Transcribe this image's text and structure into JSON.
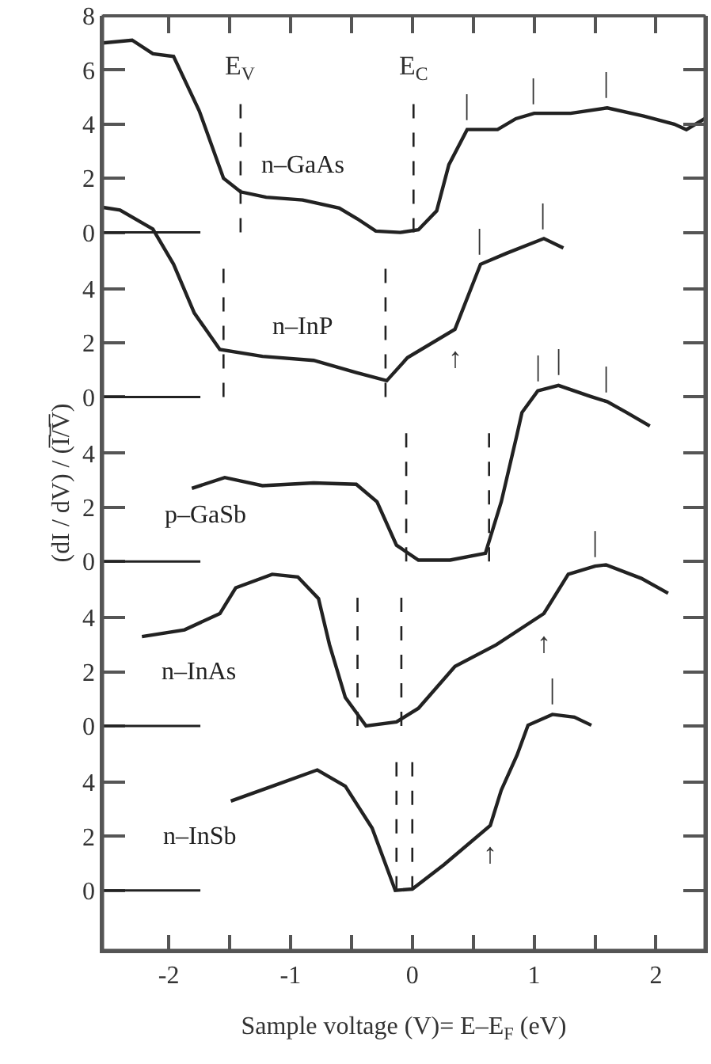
{
  "chart_data": [
    {
      "type": "line",
      "xlim": [
        -2.54,
        2.4
      ],
      "xticks": [
        {
          "value": -2,
          "label": null
        },
        {
          "value": -1.5,
          "label": null
        },
        {
          "value": -1,
          "label": null
        },
        {
          "value": -0.5,
          "label": null
        },
        {
          "value": 0,
          "label": null
        },
        {
          "value": 0.5,
          "label": null
        },
        {
          "value": 1,
          "label": null
        },
        {
          "value": 1.5,
          "label": null
        },
        {
          "value": 2,
          "label": null
        }
      ],
      "ylim": [
        -1.2,
        8
      ],
      "yticks": [
        0,
        2,
        4,
        6,
        8
      ],
      "tick_labels": "y",
      "marker": "none",
      "line_style": "solid",
      "series": [
        {
          "name": "n–GaAs",
          "color": "#222222",
          "x": [
            -2.54,
            -2.3,
            -2.13,
            -1.96,
            -1.75,
            -1.55,
            -1.41,
            -1.2,
            -0.9,
            -0.6,
            -0.45,
            -0.3,
            -0.1,
            0.05,
            0.2,
            0.3,
            0.45,
            0.7,
            0.85,
            1.0,
            1.3,
            1.6,
            1.9,
            2.15,
            2.25,
            2.4
          ],
          "values": [
            7.0,
            7.1,
            6.6,
            6.5,
            4.5,
            2.0,
            1.5,
            1.3,
            1.2,
            0.9,
            0.5,
            0.05,
            0.0,
            0.1,
            0.8,
            2.5,
            3.8,
            3.8,
            4.2,
            4.4,
            4.4,
            4.6,
            4.3,
            4.0,
            3.8,
            4.2
          ]
        }
      ],
      "ref_lines": [
        {
          "axis": "x",
          "value": -1.41,
          "label": "E$_{V}$",
          "line_style": "dashed"
        },
        {
          "axis": "x",
          "value": 0.01,
          "label": "E$_{C}$",
          "line_style": "dashed"
        },
        {
          "axis": "y",
          "value": 0
        }
      ],
      "annotations": [
        {
          "text": "|",
          "x": 0.45,
          "y": 3.8
        },
        {
          "text": "|",
          "x": 1.0,
          "y": 4.4
        },
        {
          "text": "|",
          "x": 1.6,
          "y": 4.6
        }
      ]
    },
    {
      "type": "line",
      "xlim": [
        -2.54,
        2.4
      ],
      "ylim": [
        -1.2,
        7.3
      ],
      "yticks": [
        0,
        2,
        4
      ],
      "tick_labels": "y",
      "marker": "none",
      "line_style": "solid",
      "series": [
        {
          "name": "n–InP",
          "color": "#222222",
          "x": [
            -2.54,
            -2.4,
            -2.13,
            -1.96,
            -1.79,
            -1.58,
            -1.23,
            -0.81,
            -0.46,
            -0.21,
            -0.04,
            0.35,
            0.56,
            0.77,
            1.08,
            1.24
          ],
          "values": [
            7.0,
            6.9,
            6.2,
            4.9,
            3.1,
            1.75,
            1.5,
            1.35,
            0.9,
            0.6,
            1.45,
            2.5,
            4.9,
            5.3,
            5.85,
            5.5
          ]
        }
      ],
      "ref_lines": [
        {
          "axis": "x",
          "value": -1.55,
          "line_style": "dashed"
        },
        {
          "axis": "x",
          "value": -0.22,
          "line_style": "dashed"
        },
        {
          "axis": "y",
          "value": 0
        }
      ],
      "annotations": [
        {
          "text": "|",
          "x": 0.56,
          "y": 4.9
        },
        {
          "text": "|",
          "x": 1.08,
          "y": 5.85
        },
        {
          "text": "↑",
          "x": 0.35,
          "y": 2.5
        }
      ]
    },
    {
      "type": "line",
      "xlim": [
        -2.54,
        2.4
      ],
      "ylim": [
        -1.2,
        7.0
      ],
      "yticks": [
        0,
        2,
        4
      ],
      "tick_labels": "y",
      "marker": "none",
      "line_style": "solid",
      "ylabel": "(dI / dV) / (I̅/̅V̅)",
      "series": [
        {
          "name": "p–GaSb",
          "color": "#222222",
          "x": [
            -1.81,
            -1.54,
            -1.23,
            -0.81,
            -0.46,
            -0.29,
            -0.13,
            0.05,
            0.31,
            0.6,
            0.73,
            0.86,
            0.9,
            1.03,
            1.2,
            1.46,
            1.6,
            1.76,
            1.95
          ],
          "values": [
            2.7,
            3.1,
            2.8,
            2.9,
            2.85,
            2.2,
            0.6,
            0.05,
            0.05,
            0.3,
            2.2,
            4.7,
            5.5,
            6.3,
            6.5,
            6.1,
            5.9,
            5.5,
            5.0
          ]
        }
      ],
      "ref_lines": [
        {
          "axis": "x",
          "value": -0.05,
          "line_style": "dashed"
        },
        {
          "axis": "x",
          "value": 0.63,
          "line_style": "dashed"
        },
        {
          "axis": "y",
          "value": 0
        }
      ],
      "annotations": [
        {
          "text": "|",
          "x": 1.03,
          "y": 6.3
        },
        {
          "text": "|",
          "x": 1.2,
          "y": 6.5
        },
        {
          "text": "|",
          "x": 1.6,
          "y": 5.9
        }
      ]
    },
    {
      "type": "line",
      "xlim": [
        -2.54,
        2.4
      ],
      "ylim": [
        -1.2,
        7.0
      ],
      "yticks": [
        0,
        2,
        4
      ],
      "tick_labels": "y",
      "marker": "none",
      "line_style": "solid",
      "series": [
        {
          "name": "n–InAs",
          "color": "#222222",
          "x": [
            -2.22,
            -1.87,
            -1.58,
            -1.45,
            -1.15,
            -0.94,
            -0.77,
            -0.68,
            -0.55,
            -0.38,
            -0.13,
            0.05,
            0.35,
            0.69,
            1.08,
            1.28,
            1.5,
            1.59,
            1.88,
            2.1
          ],
          "values": [
            3.3,
            3.55,
            4.15,
            5.1,
            5.6,
            5.5,
            4.7,
            3.0,
            1.05,
            0.0,
            0.15,
            0.65,
            2.2,
            3.0,
            4.15,
            5.6,
            5.9,
            5.95,
            5.45,
            4.9
          ]
        }
      ],
      "ref_lines": [
        {
          "axis": "x",
          "value": -0.45,
          "line_style": "dashed"
        },
        {
          "axis": "x",
          "value": -0.09,
          "line_style": "dashed"
        },
        {
          "axis": "y",
          "value": 0
        }
      ],
      "annotations": [
        {
          "text": "|",
          "x": 1.5,
          "y": 5.9
        },
        {
          "text": "↑",
          "x": 1.08,
          "y": 4.15
        }
      ]
    },
    {
      "type": "line",
      "xlim": [
        -2.54,
        2.4
      ],
      "xticks": [
        -2,
        {
          "value": -1.5,
          "label": null
        },
        -1,
        {
          "value": -0.5,
          "label": null
        },
        0,
        {
          "value": 0.5,
          "label": null
        },
        1,
        {
          "value": 1.5,
          "label": null
        },
        2
      ],
      "ylim": [
        -2.2,
        7.0
      ],
      "yticks": [
        0,
        2,
        4
      ],
      "marker": "none",
      "line_style": "solid",
      "xlabel": "Sample voltage (V)= E–E$_{F}$ (eV)",
      "series": [
        {
          "name": "n–InSb",
          "color": "#222222",
          "x": [
            -1.49,
            -1.15,
            -0.78,
            -0.55,
            -0.33,
            -0.14,
            0.0,
            0.26,
            0.64,
            0.73,
            0.86,
            0.95,
            1.15,
            1.33,
            1.47
          ],
          "values": [
            3.3,
            3.85,
            4.45,
            3.85,
            2.3,
            0.0,
            0.05,
            0.95,
            2.4,
            3.7,
            5.0,
            6.1,
            6.5,
            6.4,
            6.1
          ]
        }
      ],
      "ref_lines": [
        {
          "axis": "x",
          "value": -0.13,
          "line_style": "dashed"
        },
        {
          "axis": "x",
          "value": 0.0,
          "line_style": "dashed"
        },
        {
          "axis": "y",
          "value": 0
        }
      ],
      "annotations": [
        {
          "text": "|",
          "x": 1.15,
          "y": 6.5
        },
        {
          "text": "↑",
          "x": 0.64,
          "y": 2.4
        }
      ]
    }
  ]
}
